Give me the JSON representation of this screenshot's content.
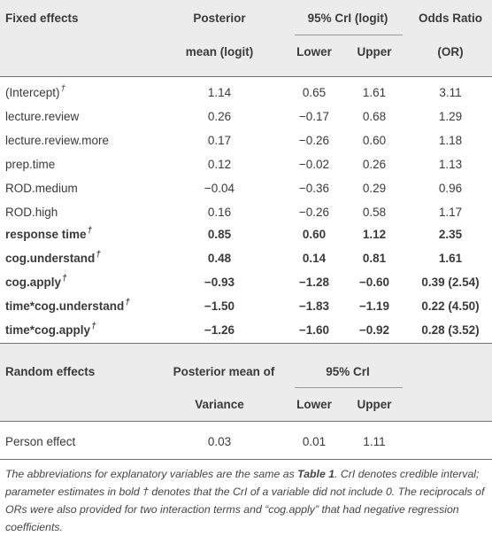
{
  "fixed": {
    "header": {
      "col1": "Fixed effects",
      "col2_top": "Posterior",
      "col2_bottom": "mean (logit)",
      "ci_group": "95% CrI (logit)",
      "lower": "Lower",
      "upper": "Upper",
      "col5_top": "Odds Ratio",
      "col5_bottom": "(OR)"
    },
    "rows": [
      {
        "name": "(Intercept)",
        "dagger": "†",
        "mean": "1.14",
        "lower": "0.65",
        "upper": "1.61",
        "or": "3.11",
        "bold": false
      },
      {
        "name": "lecture.review",
        "dagger": "",
        "mean": "0.26",
        "lower": "−0.17",
        "upper": "0.68",
        "or": "1.29",
        "bold": false
      },
      {
        "name": "lecture.review.more",
        "dagger": "",
        "mean": "0.17",
        "lower": "−0.26",
        "upper": "0.60",
        "or": "1.18",
        "bold": false
      },
      {
        "name": "prep.time",
        "dagger": "",
        "mean": "0.12",
        "lower": "−0.02",
        "upper": "0.26",
        "or": "1.13",
        "bold": false
      },
      {
        "name": "ROD.medium",
        "dagger": "",
        "mean": "−0.04",
        "lower": "−0.36",
        "upper": "0.29",
        "or": "0.96",
        "bold": false
      },
      {
        "name": "ROD.high",
        "dagger": "",
        "mean": "0.16",
        "lower": "−0.26",
        "upper": "0.58",
        "or": "1.17",
        "bold": false
      },
      {
        "name": "response time",
        "dagger": "†",
        "mean": "0.85",
        "lower": "0.60",
        "upper": "1.12",
        "or": "2.35",
        "bold": true
      },
      {
        "name": "cog.understand",
        "dagger": "†",
        "mean": "0.48",
        "lower": "0.14",
        "upper": "0.81",
        "or": "1.61",
        "bold": true
      },
      {
        "name": "cog.apply",
        "dagger": "†",
        "mean": "−0.93",
        "lower": "−1.28",
        "upper": "−0.60",
        "or": "0.39 (2.54)",
        "bold": true
      },
      {
        "name": "time*cog.understand",
        "dagger": "†",
        "mean": "−1.50",
        "lower": "−1.83",
        "upper": "−1.19",
        "or": "0.22 (4.50)",
        "bold": true
      },
      {
        "name": "time*cog.apply",
        "dagger": "†",
        "mean": "−1.26",
        "lower": "−1.60",
        "upper": "−0.92",
        "or": "0.28 (3.52)",
        "bold": true
      }
    ]
  },
  "random": {
    "header": {
      "col1": "Random effects",
      "col2_top": "Posterior mean of",
      "col2_bottom": "Variance",
      "ci_group": "95% CrI",
      "lower": "Lower",
      "upper": "Upper"
    },
    "rows": [
      {
        "name": "Person effect",
        "mean": "0.03",
        "lower": "0.01",
        "upper": "1.11"
      }
    ]
  },
  "footnote": {
    "part1": "The abbreviations for explanatory variables are the same as ",
    "table_ref": "Table 1",
    "part2": ". CrI denotes credible interval; parameter estimates in bold ",
    "dagger": "†",
    "part3": " denotes that the CrI of a variable did not include 0. The reciprocals of ORs were also provided for two interaction terms and “cog.apply” that had negative regression coefficients."
  }
}
